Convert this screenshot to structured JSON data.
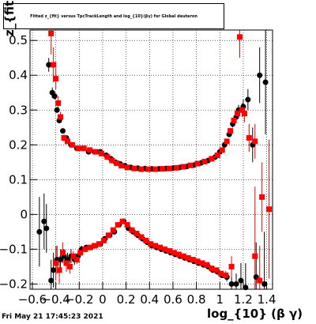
{
  "chart_data": {
    "type": "scatter",
    "title": "Fitted z_{fit} versus TpcTrackLength and log_{10}(βγ) for Global deuteron",
    "xlabel": "log_{10} (β γ)",
    "ylabel": "z_{fit}",
    "xlim": [
      -0.62,
      1.45
    ],
    "ylim": [
      -0.215,
      0.53
    ],
    "grid": true,
    "xticks": [
      -0.6,
      -0.4,
      -0.2,
      0,
      0.2,
      0.4,
      0.6,
      0.8,
      1,
      1.2,
      1.4
    ],
    "xtick_labels": [
      "−0.6",
      "−0.4",
      "−0.2",
      "0",
      "0.2",
      "0.4",
      "0.6",
      "0.8",
      "1",
      "1.2",
      "1.4"
    ],
    "yticks": [
      -0.2,
      -0.1,
      0,
      0.1,
      0.2,
      0.3,
      0.4,
      0.5
    ],
    "ytick_labels": [
      "−0.2",
      "−0.1",
      "0",
      "0.1",
      "0.2",
      "0.3",
      "0.4",
      "0.5"
    ],
    "series": [
      {
        "color": "#000000",
        "marker": "circle",
        "points": [
          [
            -0.54,
            -0.05,
            0.1
          ],
          [
            -0.5,
            -0.02,
            0.08
          ],
          [
            -0.48,
            -0.04,
            0.07
          ],
          [
            -0.44,
            -0.19,
            0.06
          ],
          [
            -0.42,
            -0.16,
            0.05
          ],
          [
            -0.39,
            -0.13,
            0.04
          ],
          [
            -0.36,
            -0.13,
            0.03
          ],
          [
            -0.33,
            -0.12,
            0.02
          ],
          [
            -0.3,
            -0.13,
            0.02
          ],
          [
            -0.27,
            -0.12,
            0.02
          ],
          [
            -0.24,
            -0.13,
            0.015
          ],
          [
            -0.21,
            -0.12,
            0.01
          ],
          [
            -0.18,
            -0.1,
            0.01
          ],
          [
            -0.14,
            -0.095,
            0.005
          ],
          [
            -0.1,
            -0.095,
            0.004
          ],
          [
            -0.06,
            -0.09,
            0.003
          ],
          [
            -0.02,
            -0.085,
            0.003
          ],
          [
            0.02,
            -0.07,
            0.002
          ],
          [
            0.06,
            -0.06,
            0.002
          ],
          [
            0.1,
            -0.05,
            0.002
          ],
          [
            0.14,
            -0.03,
            0.002
          ],
          [
            0.18,
            -0.02,
            0.002
          ],
          [
            0.22,
            -0.04,
            0.002
          ],
          [
            0.26,
            -0.05,
            0.002
          ],
          [
            0.3,
            -0.06,
            0.002
          ],
          [
            0.34,
            -0.07,
            0.002
          ],
          [
            0.38,
            -0.08,
            0.002
          ],
          [
            0.42,
            -0.09,
            0.002
          ],
          [
            0.46,
            -0.095,
            0.002
          ],
          [
            0.5,
            -0.1,
            0.002
          ],
          [
            0.54,
            -0.105,
            0.002
          ],
          [
            0.58,
            -0.11,
            0.002
          ],
          [
            0.62,
            -0.115,
            0.002
          ],
          [
            0.66,
            -0.12,
            0.002
          ],
          [
            0.7,
            -0.125,
            0.002
          ],
          [
            0.74,
            -0.13,
            0.003
          ],
          [
            0.78,
            -0.135,
            0.003
          ],
          [
            0.82,
            -0.14,
            0.003
          ],
          [
            0.86,
            -0.145,
            0.003
          ],
          [
            0.9,
            -0.15,
            0.004
          ],
          [
            0.94,
            -0.16,
            0.005
          ],
          [
            0.98,
            -0.165,
            0.006
          ],
          [
            1.02,
            -0.175,
            0.008
          ],
          [
            1.06,
            -0.18,
            0.012
          ],
          [
            1.1,
            -0.2,
            0.02
          ],
          [
            1.14,
            -0.2,
            0.03
          ],
          [
            1.18,
            -0.19,
            0.05
          ],
          [
            1.22,
            -0.21,
            0.07
          ],
          [
            1.31,
            -0.18,
            0.1
          ],
          [
            1.38,
            -0.2,
            0.15
          ],
          [
            -0.46,
            0.43,
            0.02
          ],
          [
            -0.43,
            0.35,
            0.015
          ],
          [
            -0.41,
            0.34,
            0.01
          ],
          [
            -0.39,
            0.3,
            0.008
          ],
          [
            -0.37,
            0.27,
            0.006
          ],
          [
            -0.34,
            0.24,
            0.005
          ],
          [
            -0.31,
            0.22,
            0.004
          ],
          [
            -0.27,
            0.2,
            0.003
          ],
          [
            -0.22,
            0.19,
            0.002
          ],
          [
            -0.17,
            0.19,
            0.002
          ],
          [
            -0.12,
            0.18,
            0.002
          ],
          [
            -0.07,
            0.18,
            0.002
          ],
          [
            -0.02,
            0.18,
            0.002
          ],
          [
            0.03,
            0.17,
            0.002
          ],
          [
            0.07,
            0.16,
            0.002
          ],
          [
            0.11,
            0.15,
            0.002
          ],
          [
            0.15,
            0.145,
            0.002
          ],
          [
            0.19,
            0.14,
            0.002
          ],
          [
            0.24,
            0.135,
            0.002
          ],
          [
            0.3,
            0.133,
            0.002
          ],
          [
            0.36,
            0.132,
            0.002
          ],
          [
            0.42,
            0.131,
            0.002
          ],
          [
            0.48,
            0.131,
            0.002
          ],
          [
            0.54,
            0.132,
            0.002
          ],
          [
            0.6,
            0.133,
            0.002
          ],
          [
            0.66,
            0.135,
            0.002
          ],
          [
            0.72,
            0.138,
            0.002
          ],
          [
            0.78,
            0.142,
            0.002
          ],
          [
            0.84,
            0.148,
            0.003
          ],
          [
            0.9,
            0.155,
            0.003
          ],
          [
            0.96,
            0.165,
            0.004
          ],
          [
            1.0,
            0.18,
            0.005
          ],
          [
            1.04,
            0.2,
            0.006
          ],
          [
            1.08,
            0.23,
            0.008
          ],
          [
            1.11,
            0.26,
            0.01
          ],
          [
            1.14,
            0.28,
            0.012
          ],
          [
            1.16,
            0.3,
            0.015
          ],
          [
            1.2,
            0.31,
            0.02
          ],
          [
            1.24,
            0.33,
            0.03
          ],
          [
            1.28,
            0.2,
            0.05
          ],
          [
            1.34,
            0.4,
            0.08
          ],
          [
            1.39,
            0.38,
            0.15
          ]
        ]
      },
      {
        "color": "#ff0000",
        "marker": "square",
        "points": [
          [
            -0.44,
            0.52,
            0.06
          ],
          [
            -0.42,
            0.43,
            0.05
          ],
          [
            -0.4,
            0.39,
            0.03
          ],
          [
            -0.38,
            0.32,
            0.02
          ],
          [
            -0.36,
            0.28,
            0.015
          ],
          [
            -0.33,
            0.22,
            0.01
          ],
          [
            -0.3,
            0.21,
            0.007
          ],
          [
            -0.26,
            0.2,
            0.005
          ],
          [
            -0.21,
            0.19,
            0.004
          ],
          [
            -0.16,
            0.19,
            0.003
          ],
          [
            -0.11,
            0.185,
            0.003
          ],
          [
            -0.06,
            0.18,
            0.002
          ],
          [
            -0.01,
            0.175,
            0.002
          ],
          [
            0.04,
            0.165,
            0.002
          ],
          [
            0.08,
            0.155,
            0.002
          ],
          [
            0.12,
            0.147,
            0.002
          ],
          [
            0.16,
            0.14,
            0.002
          ],
          [
            0.21,
            0.135,
            0.002
          ],
          [
            0.27,
            0.132,
            0.002
          ],
          [
            0.33,
            0.13,
            0.002
          ],
          [
            0.39,
            0.13,
            0.002
          ],
          [
            0.45,
            0.13,
            0.002
          ],
          [
            0.51,
            0.131,
            0.002
          ],
          [
            0.57,
            0.132,
            0.002
          ],
          [
            0.63,
            0.134,
            0.002
          ],
          [
            0.69,
            0.137,
            0.002
          ],
          [
            0.75,
            0.141,
            0.002
          ],
          [
            0.81,
            0.146,
            0.002
          ],
          [
            0.87,
            0.152,
            0.003
          ],
          [
            0.93,
            0.16,
            0.003
          ],
          [
            0.98,
            0.17,
            0.004
          ],
          [
            1.02,
            0.185,
            0.005
          ],
          [
            1.06,
            0.21,
            0.007
          ],
          [
            1.09,
            0.24,
            0.009
          ],
          [
            1.12,
            0.27,
            0.011
          ],
          [
            1.15,
            0.29,
            0.013
          ],
          [
            1.17,
            0.51,
            0.06
          ],
          [
            1.19,
            0.3,
            0.02
          ],
          [
            1.21,
            0.29,
            0.025
          ],
          [
            1.25,
            0.22,
            0.04
          ],
          [
            1.3,
            0.21,
            0.05
          ],
          [
            1.36,
            0.05,
            0.1
          ],
          [
            1.42,
            0.015,
            0.2
          ],
          [
            -0.4,
            -0.14,
            0.05
          ],
          [
            -0.37,
            -0.16,
            0.04
          ],
          [
            -0.34,
            -0.11,
            0.03
          ],
          [
            -0.31,
            -0.14,
            0.025
          ],
          [
            -0.28,
            -0.15,
            0.02
          ],
          [
            -0.25,
            -0.12,
            0.015
          ],
          [
            -0.22,
            -0.13,
            0.012
          ],
          [
            -0.19,
            -0.11,
            0.01
          ],
          [
            -0.15,
            -0.1,
            0.006
          ],
          [
            -0.11,
            -0.095,
            0.004
          ],
          [
            -0.07,
            -0.09,
            0.003
          ],
          [
            -0.03,
            -0.085,
            0.003
          ],
          [
            0.01,
            -0.075,
            0.002
          ],
          [
            0.05,
            -0.06,
            0.002
          ],
          [
            0.09,
            -0.045,
            0.002
          ],
          [
            0.13,
            -0.03,
            0.002
          ],
          [
            0.17,
            -0.02,
            0.002
          ],
          [
            0.21,
            -0.03,
            0.002
          ],
          [
            0.25,
            -0.045,
            0.002
          ],
          [
            0.29,
            -0.055,
            0.002
          ],
          [
            0.33,
            -0.065,
            0.002
          ],
          [
            0.37,
            -0.075,
            0.002
          ],
          [
            0.41,
            -0.085,
            0.002
          ],
          [
            0.45,
            -0.09,
            0.002
          ],
          [
            0.49,
            -0.095,
            0.002
          ],
          [
            0.53,
            -0.1,
            0.002
          ],
          [
            0.57,
            -0.105,
            0.002
          ],
          [
            0.61,
            -0.11,
            0.002
          ],
          [
            0.65,
            -0.115,
            0.002
          ],
          [
            0.69,
            -0.12,
            0.002
          ],
          [
            0.73,
            -0.125,
            0.003
          ],
          [
            0.77,
            -0.13,
            0.003
          ],
          [
            0.81,
            -0.135,
            0.003
          ],
          [
            0.85,
            -0.14,
            0.003
          ],
          [
            0.89,
            -0.145,
            0.004
          ],
          [
            0.93,
            -0.155,
            0.005
          ],
          [
            0.97,
            -0.16,
            0.006
          ],
          [
            1.01,
            -0.17,
            0.008
          ],
          [
            1.05,
            -0.175,
            0.012
          ],
          [
            1.1,
            -0.15,
            0.03
          ],
          [
            1.3,
            -0.12,
            0.2
          ],
          [
            1.34,
            -0.19,
            0.1
          ]
        ]
      }
    ],
    "footer_timestamp": "Fri May 21 17:45:23 2021"
  }
}
